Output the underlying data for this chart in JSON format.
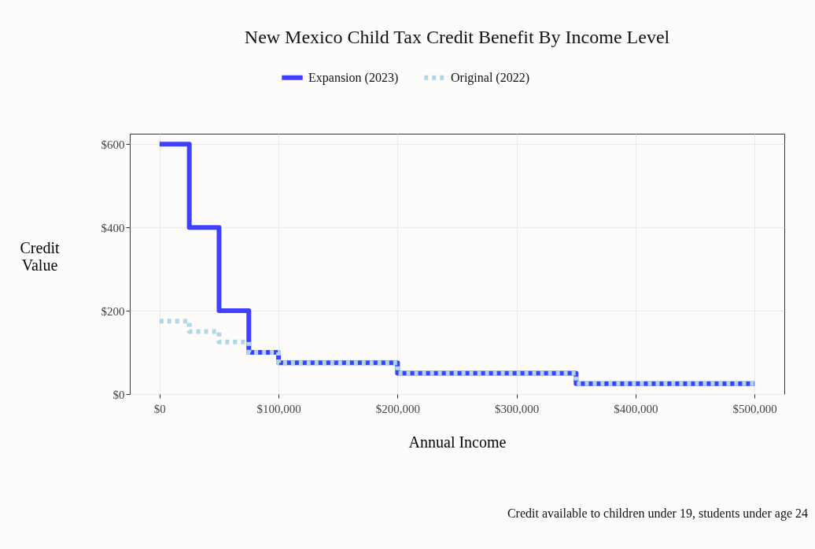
{
  "chart_data": {
    "type": "step",
    "title": "New Mexico Child Tax Credit Benefit By Income Level",
    "xlabel": "Annual Income",
    "ylabel": "Credit Value",
    "x": [
      0,
      25000,
      50000,
      75000,
      100000,
      200000,
      350000,
      500000
    ],
    "series": [
      {
        "name": "Expansion (2023)",
        "color": "#4040ff",
        "line_style": "solid",
        "values": [
          600,
          400,
          200,
          100,
          75,
          50,
          25,
          25
        ]
      },
      {
        "name": "Original (2022)",
        "color": "#add8e6",
        "line_style": "dotted",
        "values": [
          175,
          150,
          125,
          100,
          75,
          50,
          25,
          25
        ]
      }
    ],
    "xlim": [
      -25000,
      525000
    ],
    "ylim": [
      0,
      625
    ],
    "xticks": [
      {
        "value": 0,
        "label": "$0"
      },
      {
        "value": 100000,
        "label": "$100,000"
      },
      {
        "value": 200000,
        "label": "$200,000"
      },
      {
        "value": 300000,
        "label": "$300,000"
      },
      {
        "value": 400000,
        "label": "$400,000"
      },
      {
        "value": 500000,
        "label": "$500,000"
      }
    ],
    "yticks": [
      {
        "value": 0,
        "label": "$0"
      },
      {
        "value": 200,
        "label": "$200"
      },
      {
        "value": 400,
        "label": "$400"
      },
      {
        "value": 600,
        "label": "$600"
      }
    ],
    "grid": true,
    "legend": "top",
    "marker": "none",
    "annotations": [
      "Credit available to children under 19, students under age 24"
    ]
  }
}
